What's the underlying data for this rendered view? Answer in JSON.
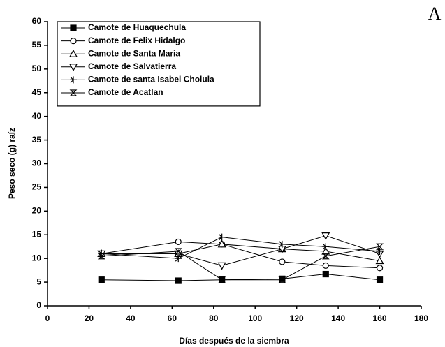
{
  "chart_data": {
    "type": "line",
    "title": "A",
    "x_label": "Días después de la siembra",
    "y_label": "Peso seco (g) raíz",
    "x": [
      26,
      63,
      84,
      113,
      134,
      160
    ],
    "series": [
      {
        "name": "Camote de Huaquechula",
        "color": "#000000",
        "marker": "square-filled",
        "values": [
          5.5,
          5.3,
          5.5,
          5.7,
          6.7,
          5.5
        ]
      },
      {
        "name": "Camote de Felix Hidalgo",
        "color": "#000000",
        "marker": "circle",
        "values": [
          11,
          13.5,
          13,
          9.3,
          8.5,
          8
        ]
      },
      {
        "name": "Camote de Santa Maria",
        "color": "#000000",
        "marker": "triangle-up",
        "values": [
          11,
          11,
          13,
          12,
          11.5,
          9.5
        ]
      },
      {
        "name": "Camote de Salvatierra",
        "color": "#000000",
        "marker": "triangle-down",
        "values": [
          11,
          11,
          8.5,
          12,
          14.8,
          11
        ]
      },
      {
        "name": "Camote de santa Isabel Cholula",
        "color": "#000000",
        "marker": "plus",
        "values": [
          11,
          10,
          14.5,
          13,
          12.5,
          11.5
        ]
      },
      {
        "name": "Camote de Acatlan",
        "color": "#000000",
        "marker": "box-x",
        "values": [
          10.5,
          11.5,
          5.5,
          5.5,
          10.5,
          12.5
        ]
      }
    ],
    "xlim": [
      0,
      180
    ],
    "xticks": [
      0,
      20,
      40,
      60,
      80,
      100,
      120,
      140,
      160,
      180
    ],
    "ylim": [
      0,
      60
    ],
    "yticks": [
      0,
      5,
      10,
      15,
      20,
      25,
      30,
      35,
      40,
      45,
      50,
      55,
      60
    ],
    "legend": "upper-left"
  }
}
